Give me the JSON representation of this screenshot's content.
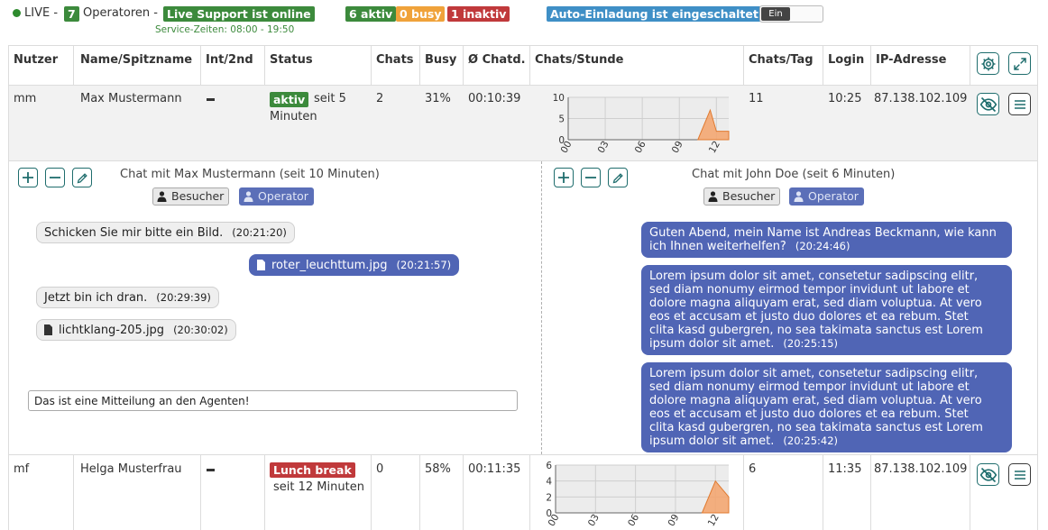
{
  "topbar": {
    "live_label": "LIVE -",
    "operator_count": "7",
    "operators_label": "Operatoren -",
    "support_status": "Live Support ist online",
    "service_hours": "Service-Zeiten: 08:00 - 19:50",
    "active_badge": "6 aktiv",
    "busy_badge": "0 busy",
    "inactive_badge": "1 inaktiv",
    "auto_invite": "Auto-Einladung ist eingeschaltet",
    "toggle_label": "Ein"
  },
  "columns": [
    "Nutzer",
    "Name/Spitzname",
    "Int/2nd",
    "Status",
    "Chats",
    "Busy",
    "Ø Chatd.",
    "Chats/Stunde",
    "Chats/Tag",
    "Login",
    "IP-Adresse"
  ],
  "operators": [
    {
      "user": "mm",
      "name": "Max Mustermann",
      "status_badge": "aktiv",
      "status_since_1": "seit 5",
      "status_since_2": "Minuten",
      "chats": "2",
      "busy": "31%",
      "avg_duration": "00:10:39",
      "chats_per_day": "11",
      "login": "10:25",
      "ip": "87.138.102.109"
    },
    {
      "user": "mf",
      "name": "Helga Musterfrau",
      "status_badge": "Lunch break",
      "status_since": "seit 12 Minuten",
      "chats": "0",
      "busy": "58%",
      "avg_duration": "00:11:35",
      "chats_per_day": "6",
      "login": "11:35",
      "ip": "87.138.102.109"
    }
  ],
  "chart_data": [
    {
      "type": "area",
      "x": [
        "00",
        "03",
        "06",
        "09",
        "12"
      ],
      "yticks": [
        "10",
        "5",
        "0"
      ],
      "ylim": [
        0,
        10
      ],
      "xlim": [
        0,
        13
      ],
      "points": [
        [
          10.5,
          0
        ],
        [
          11.5,
          7
        ],
        [
          12,
          2
        ],
        [
          13,
          2
        ]
      ],
      "color": "#f5a36b"
    },
    {
      "type": "area",
      "x": [
        "00",
        "03",
        "06",
        "09",
        "12"
      ],
      "yticks": [
        "6",
        "4",
        "2",
        "0"
      ],
      "ylim": [
        0,
        6
      ],
      "xlim": [
        0,
        13
      ],
      "points": [
        [
          11,
          0
        ],
        [
          12,
          4
        ],
        [
          13,
          2
        ]
      ],
      "color": "#f5a36b"
    }
  ],
  "chats": [
    {
      "title": "Chat mit Max Mustermann (seit 10 Minuten)",
      "visitor_label": "Besucher",
      "operator_label": "Operator",
      "messages": [
        {
          "from": "visitor",
          "text": "Schicken Sie mir bitte ein Bild.",
          "time": "(20:21:20)"
        },
        {
          "from": "operator",
          "text": "roter_leuchttum.jpg",
          "time": "(20:21:57)",
          "file": true
        },
        {
          "from": "visitor",
          "text": "Jetzt bin ich dran.",
          "time": "(20:29:39)"
        },
        {
          "from": "visitor",
          "text": "lichtklang-205.jpg",
          "time": "(20:30:02)",
          "file": true
        }
      ],
      "input_value": "Das ist eine Mitteilung an den Agenten!"
    },
    {
      "title": "Chat mit John Doe (seit 6 Minuten)",
      "visitor_label": "Besucher",
      "operator_label": "Operator",
      "messages": [
        {
          "from": "operator",
          "lines": [
            "Guten Abend, mein Name ist Andreas Beckmann, wie kann",
            "ich Ihnen weiterhelfen?"
          ],
          "time": "(20:24:46)"
        },
        {
          "from": "operator",
          "lines": [
            "Lorem ipsum dolor sit amet, consetetur sadipscing elitr,",
            "sed diam nonumy eirmod tempor invidunt ut labore et",
            "dolore magna aliquyam erat, sed diam voluptua. At vero",
            "eos et accusam et justo duo dolores et ea rebum. Stet",
            "clita kasd gubergren, no sea takimata sanctus est Lorem",
            "ipsum dolor sit amet."
          ],
          "time": "(20:25:15)"
        },
        {
          "from": "operator",
          "lines": [
            "Lorem ipsum dolor sit amet, consetetur sadipscing elitr,",
            "sed diam nonumy eirmod tempor invidunt ut labore et",
            "dolore magna aliquyam erat, sed diam voluptua. At vero",
            "eos et accusam et justo duo dolores et ea rebum. Stet",
            "clita kasd gubergren, no sea takimata sanctus est Lorem",
            "ipsum dolor sit amet."
          ],
          "time": "(20:25:42)"
        }
      ]
    }
  ],
  "colors": {
    "green": "#3c8a3c",
    "orange": "#f0a23a",
    "red": "#c0393b",
    "blue": "#3f8fc6",
    "operator_bubble": "#5065b5",
    "chart_fill": "#f5a36b"
  },
  "icons": [
    "gear-icon",
    "expand-icon",
    "eye-slash-icon",
    "menu-icon",
    "plus-icon",
    "minus-icon",
    "pen-icon",
    "user-icon",
    "file-icon"
  ]
}
